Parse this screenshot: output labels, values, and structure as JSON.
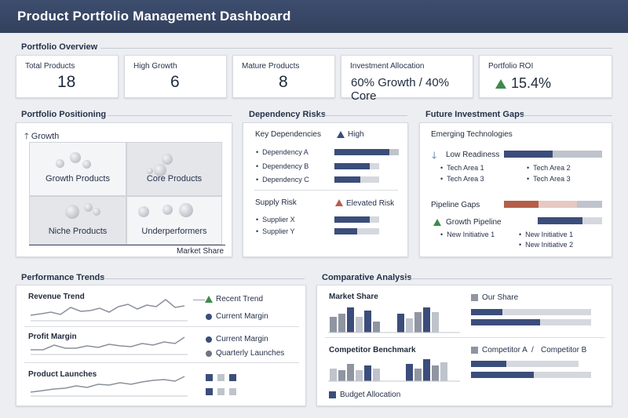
{
  "header": {
    "title": "Product Portfolio Management Dashboard"
  },
  "sections": {
    "overview": "Portfolio Overview",
    "positioning": "Portfolio Positioning",
    "dependency": "Dependency Risks",
    "future": "Future Investment Gaps",
    "performance": "Performance Trends",
    "comparative": "Comparative Analysis"
  },
  "kpis": {
    "total": {
      "label": "Total Products",
      "value": "18"
    },
    "growth": {
      "label": "High Growth",
      "value": "6"
    },
    "mature": {
      "label": "Mature Products",
      "value": "8"
    },
    "allocation": {
      "label": "Investment Allocation",
      "value": "60% Growth / 40% Core"
    },
    "roi": {
      "label": "Portfolio ROI",
      "value": "15.4%"
    }
  },
  "matrix": {
    "y_axis": "Growth",
    "x_axis": "Market Share",
    "quadrants": [
      "Growth Products",
      "Core Products",
      "Niche Products",
      "Underperformers"
    ]
  },
  "dependency": {
    "key_title": "Key Dependencies",
    "key_legend": "High",
    "items": [
      {
        "label": "Dependency A",
        "value": 0.85
      },
      {
        "label": "Dependency B",
        "value": 0.55
      },
      {
        "label": "Dependency C",
        "value": 0.4
      }
    ],
    "supply_title": "Supply Risk",
    "supply_legend": "Elevated Risk",
    "suppliers": [
      {
        "label": "Supplier X",
        "value": 0.55
      },
      {
        "label": "Supplier Y",
        "value": 0.35
      }
    ]
  },
  "future": {
    "emerging_title": "Emerging Technologies",
    "low_readiness": "Low Readiness",
    "tech_areas": [
      "Tech Area 1",
      "Tech Area 2",
      "Tech Area 3",
      "Tech Area 3"
    ],
    "pipeline_gaps": "Pipeline Gaps",
    "growth_pipeline": "Growth Pipeline",
    "initiatives": [
      "New Initiative 1",
      "New Initiative 1",
      "New Initiative 2"
    ]
  },
  "performance": {
    "revenue": "Revenue Trend",
    "margin": "Profit Margin",
    "launches": "Product Launches",
    "legend_recent": "Recent Trend",
    "legend_current": "Current Margin",
    "legend_current2": "Current Margin",
    "legend_quarterly": "Quarterly Launches"
  },
  "comparative": {
    "market_share": "Market Share",
    "our_share": "Our Share",
    "competitor_benchmark": "Competitor Benchmark",
    "competitor_a": "Competitor A",
    "separator": "/",
    "competitor_b": "Competitor B",
    "budget": "Budget Allocation"
  },
  "colors": {
    "navy": "#3b4d7a",
    "green": "#3e8a4d",
    "red": "#b55e4a",
    "header": "#3a4a69"
  }
}
